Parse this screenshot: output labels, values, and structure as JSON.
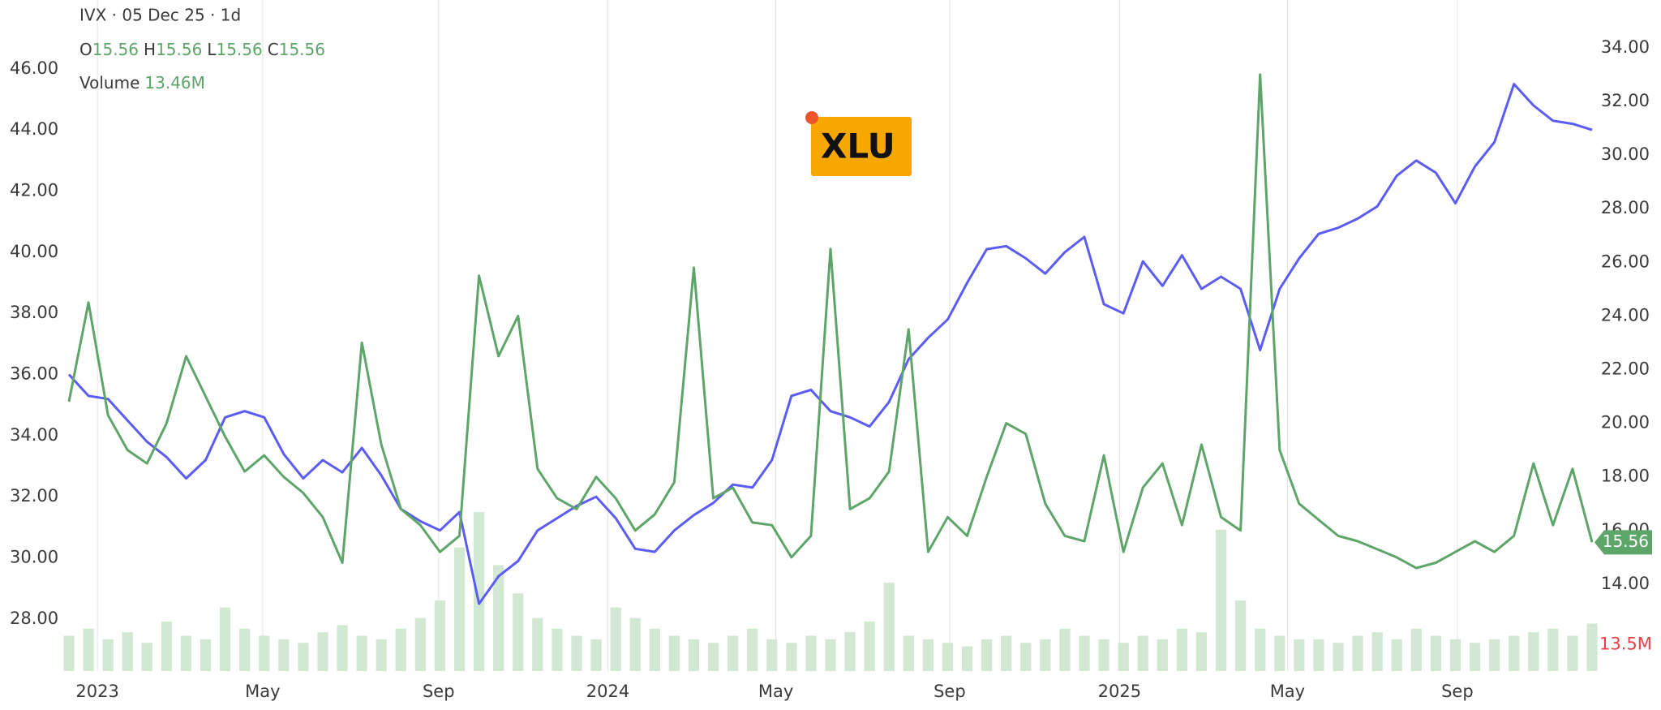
{
  "chart_data": {
    "type": "line",
    "header": {
      "symbol": "IVX · 05 Dec 25 · 1d",
      "ohlc": [
        {
          "label": "O",
          "value": 15.56
        },
        {
          "label": "H",
          "value": 15.56
        },
        {
          "label": "L",
          "value": 15.56
        },
        {
          "label": "C",
          "value": 15.56
        }
      ],
      "volume_value": "13.46M"
    },
    "xticks": [
      {
        "value": 1.46,
        "label": "2023"
      },
      {
        "value": 9.92,
        "label": "May"
      },
      {
        "value": 18.93,
        "label": "Sep"
      },
      {
        "value": 27.6,
        "label": "2024"
      },
      {
        "value": 36.2,
        "label": "May"
      },
      {
        "value": 45.1,
        "label": "Sep"
      },
      {
        "value": 53.8,
        "label": "2025"
      },
      {
        "value": 62.4,
        "label": "May"
      },
      {
        "value": 71.1,
        "label": "Sep"
      }
    ],
    "ylim": [
      26.3,
      48.25
    ],
    "yticks": [
      {
        "value": 28,
        "label": "28.00"
      },
      {
        "value": 30,
        "label": "30.00"
      },
      {
        "value": 32,
        "label": "32.00"
      },
      {
        "value": 34,
        "label": "34.00"
      },
      {
        "value": 36,
        "label": "36.00"
      },
      {
        "value": 38,
        "label": "38.00"
      },
      {
        "value": 40,
        "label": "40.00"
      },
      {
        "value": 42,
        "label": "42.00"
      },
      {
        "value": 44,
        "label": "44.00"
      },
      {
        "value": 46,
        "label": "46.00"
      }
    ],
    "y2lim": [
      10.76,
      35.78
    ],
    "y2ticks": [
      {
        "value": 14,
        "label": "14.00"
      },
      {
        "value": 16,
        "label": "16.00"
      },
      {
        "value": 18,
        "label": "18.00"
      },
      {
        "value": 20,
        "label": "20.00"
      },
      {
        "value": 22,
        "label": "22.00"
      },
      {
        "value": 24,
        "label": "24.00"
      },
      {
        "value": 26,
        "label": "26.00"
      },
      {
        "value": 28,
        "label": "28.00"
      },
      {
        "value": 30,
        "label": "30.00"
      },
      {
        "value": 32,
        "label": "32.00"
      },
      {
        "value": 34,
        "label": "34.00"
      }
    ],
    "y3lim": [
      0,
      190
    ],
    "grid": true,
    "series": [
      {
        "name": "XLU",
        "color": "#5b5cf5",
        "axis": "y",
        "label_color": "#f7a800",
        "values": [
          36.0,
          35.3,
          35.2,
          34.5,
          33.8,
          33.3,
          32.6,
          33.2,
          34.6,
          34.8,
          34.6,
          33.4,
          32.6,
          33.2,
          32.8,
          33.6,
          32.7,
          31.6,
          31.2,
          30.9,
          31.5,
          28.5,
          29.4,
          29.9,
          30.9,
          31.3,
          31.7,
          32.0,
          31.3,
          30.3,
          30.2,
          30.9,
          31.4,
          31.8,
          32.4,
          32.3,
          33.2,
          35.3,
          35.5,
          34.8,
          34.6,
          34.3,
          35.1,
          36.5,
          37.2,
          37.8,
          39.0,
          40.1,
          40.2,
          39.8,
          39.3,
          40.0,
          40.5,
          38.3,
          38.0,
          39.7,
          38.9,
          39.9,
          38.8,
          39.2,
          38.8,
          36.8,
          38.8,
          39.8,
          40.6,
          40.8,
          41.1,
          41.5,
          42.5,
          43.0,
          42.6,
          41.6,
          42.8,
          43.6,
          45.5,
          44.8,
          44.3,
          44.2,
          44.0
        ]
      },
      {
        "name": "IVX",
        "color": "#5ea56a",
        "axis": "y2",
        "values": [
          20.8,
          24.5,
          20.3,
          19.0,
          18.5,
          20.0,
          22.5,
          21.0,
          19.5,
          18.2,
          18.8,
          18.0,
          17.4,
          16.5,
          14.8,
          23.0,
          19.2,
          16.8,
          16.2,
          15.2,
          15.8,
          25.5,
          22.5,
          24.0,
          18.3,
          17.2,
          16.8,
          18.0,
          17.2,
          16.0,
          16.6,
          17.8,
          25.8,
          17.2,
          17.6,
          16.3,
          16.2,
          15.0,
          15.8,
          26.5,
          16.8,
          17.2,
          18.2,
          23.5,
          15.2,
          16.5,
          15.8,
          18.0,
          20.0,
          19.6,
          17.0,
          15.8,
          15.6,
          18.8,
          15.2,
          17.6,
          18.5,
          16.2,
          19.2,
          16.5,
          16.0,
          33.0,
          19.0,
          17.0,
          16.4,
          15.8,
          15.6,
          15.3,
          15.0,
          14.6,
          14.8,
          15.2,
          15.6,
          15.2,
          15.8,
          18.5,
          16.2,
          18.3,
          15.56
        ]
      },
      {
        "name": "Volume",
        "color": "#d3e8d3",
        "axis": "y3",
        "last_label": "13.5M",
        "last_label_color": "#e8414a",
        "values": [
          10,
          12,
          9,
          11,
          8,
          14,
          10,
          9,
          18,
          12,
          10,
          9,
          8,
          11,
          13,
          10,
          9,
          12,
          15,
          20,
          35,
          45,
          30,
          22,
          15,
          12,
          10,
          9,
          18,
          15,
          12,
          10,
          9,
          8,
          10,
          12,
          9,
          8,
          10,
          9,
          11,
          14,
          25,
          10,
          9,
          8,
          7,
          9,
          10,
          8,
          9,
          12,
          10,
          9,
          8,
          10,
          9,
          12,
          11,
          40,
          20,
          12,
          10,
          9,
          9,
          8,
          10,
          11,
          9,
          12,
          10,
          9,
          8,
          9,
          10,
          11,
          12,
          10,
          13.46
        ]
      }
    ]
  }
}
